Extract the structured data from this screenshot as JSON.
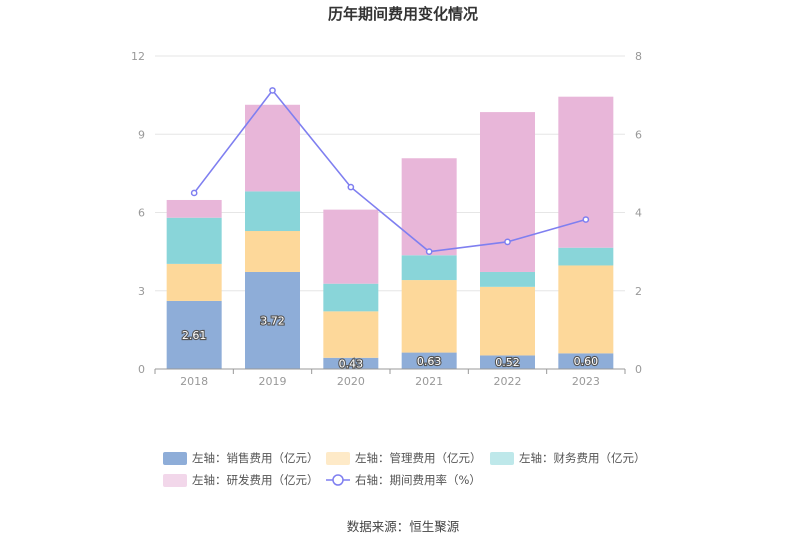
{
  "chart_data": {
    "type": "bar",
    "title": "历年期间费用变化情况",
    "categories": [
      "2018",
      "2019",
      "2020",
      "2021",
      "2022",
      "2023"
    ],
    "stacked": true,
    "left_axis": {
      "ylim": [
        0,
        12
      ],
      "ticks": [
        "0",
        "3",
        "6",
        "9",
        "12"
      ]
    },
    "right_axis": {
      "ylim": [
        0,
        8
      ],
      "ticks": [
        "0",
        "2",
        "4",
        "6",
        "8"
      ]
    },
    "series": [
      {
        "name": "左轴：销售费用（亿元）",
        "type": "bar",
        "axis": "left",
        "color": "#8eadd8",
        "values": [
          2.61,
          3.72,
          0.43,
          0.63,
          0.52,
          0.6
        ],
        "labels": [
          "2.61",
          "3.72",
          "0.43",
          "0.63",
          "0.52",
          "0.60"
        ]
      },
      {
        "name": "左轴：管理费用（亿元）",
        "type": "bar",
        "axis": "left",
        "color": "#fdd89a",
        "values": [
          1.42,
          1.57,
          1.78,
          2.78,
          2.63,
          3.37
        ]
      },
      {
        "name": "左轴：财务费用（亿元）",
        "type": "bar",
        "axis": "left",
        "color": "#89d5d9",
        "values": [
          1.77,
          1.52,
          1.06,
          0.95,
          0.57,
          0.68
        ]
      },
      {
        "name": "左轴：研发费用（亿元）",
        "type": "bar",
        "axis": "left",
        "color": "#e8b6d9",
        "values": [
          0.68,
          3.32,
          2.84,
          3.72,
          6.13,
          5.79
        ]
      },
      {
        "name": "右轴：期间费用率（%）",
        "type": "line",
        "axis": "right",
        "color": "#7f7ff0",
        "values": [
          4.5,
          7.12,
          4.65,
          3.0,
          3.25,
          3.82
        ]
      }
    ],
    "legend_position": "bottom",
    "grid": true
  },
  "source": "数据来源：恒生聚源"
}
